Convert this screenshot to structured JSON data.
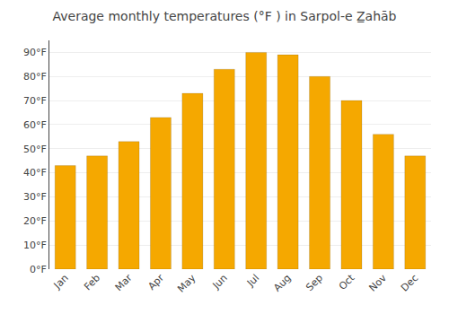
{
  "chart_data": {
    "type": "bar",
    "title": "Average monthly temperatures (°F ) in Sarpol-e Z̲ahāb",
    "categories": [
      "Jan",
      "Feb",
      "Mar",
      "Apr",
      "May",
      "Jun",
      "Jul",
      "Aug",
      "Sep",
      "Oct",
      "Nov",
      "Dec"
    ],
    "values": [
      43,
      47,
      53,
      63,
      73,
      83,
      90,
      89,
      80,
      70,
      56,
      47
    ],
    "color": "#F5A800",
    "ylim": [
      0,
      95
    ],
    "yticks": [
      {
        "value": 0,
        "label": "0°F"
      },
      {
        "value": 10,
        "label": "10°F"
      },
      {
        "value": 20,
        "label": "20°F"
      },
      {
        "value": 30,
        "label": "30°F"
      },
      {
        "value": 40,
        "label": "40°F"
      },
      {
        "value": 50,
        "label": "50°F"
      },
      {
        "value": 60,
        "label": "60°F"
      },
      {
        "value": 70,
        "label": "70°F"
      },
      {
        "value": 80,
        "label": "80°F"
      },
      {
        "value": 90,
        "label": "90°F"
      }
    ],
    "grid": true
  }
}
